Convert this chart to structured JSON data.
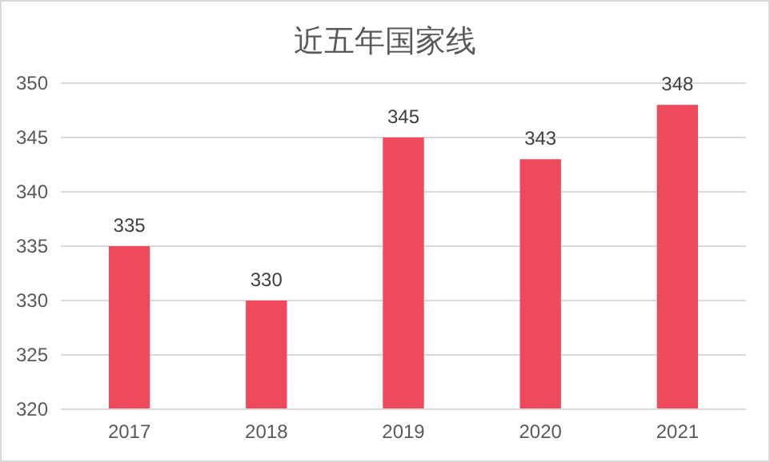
{
  "chart_data": {
    "type": "bar",
    "title": "近五年国家线",
    "categories": [
      "2017",
      "2018",
      "2019",
      "2020",
      "2021"
    ],
    "values": [
      335,
      330,
      345,
      343,
      348
    ],
    "color": "#ee4a5b",
    "ylim": [
      320,
      350
    ],
    "yticks": [
      320,
      325,
      330,
      335,
      340,
      345,
      350
    ],
    "grid": "y",
    "data_labels": true
  }
}
